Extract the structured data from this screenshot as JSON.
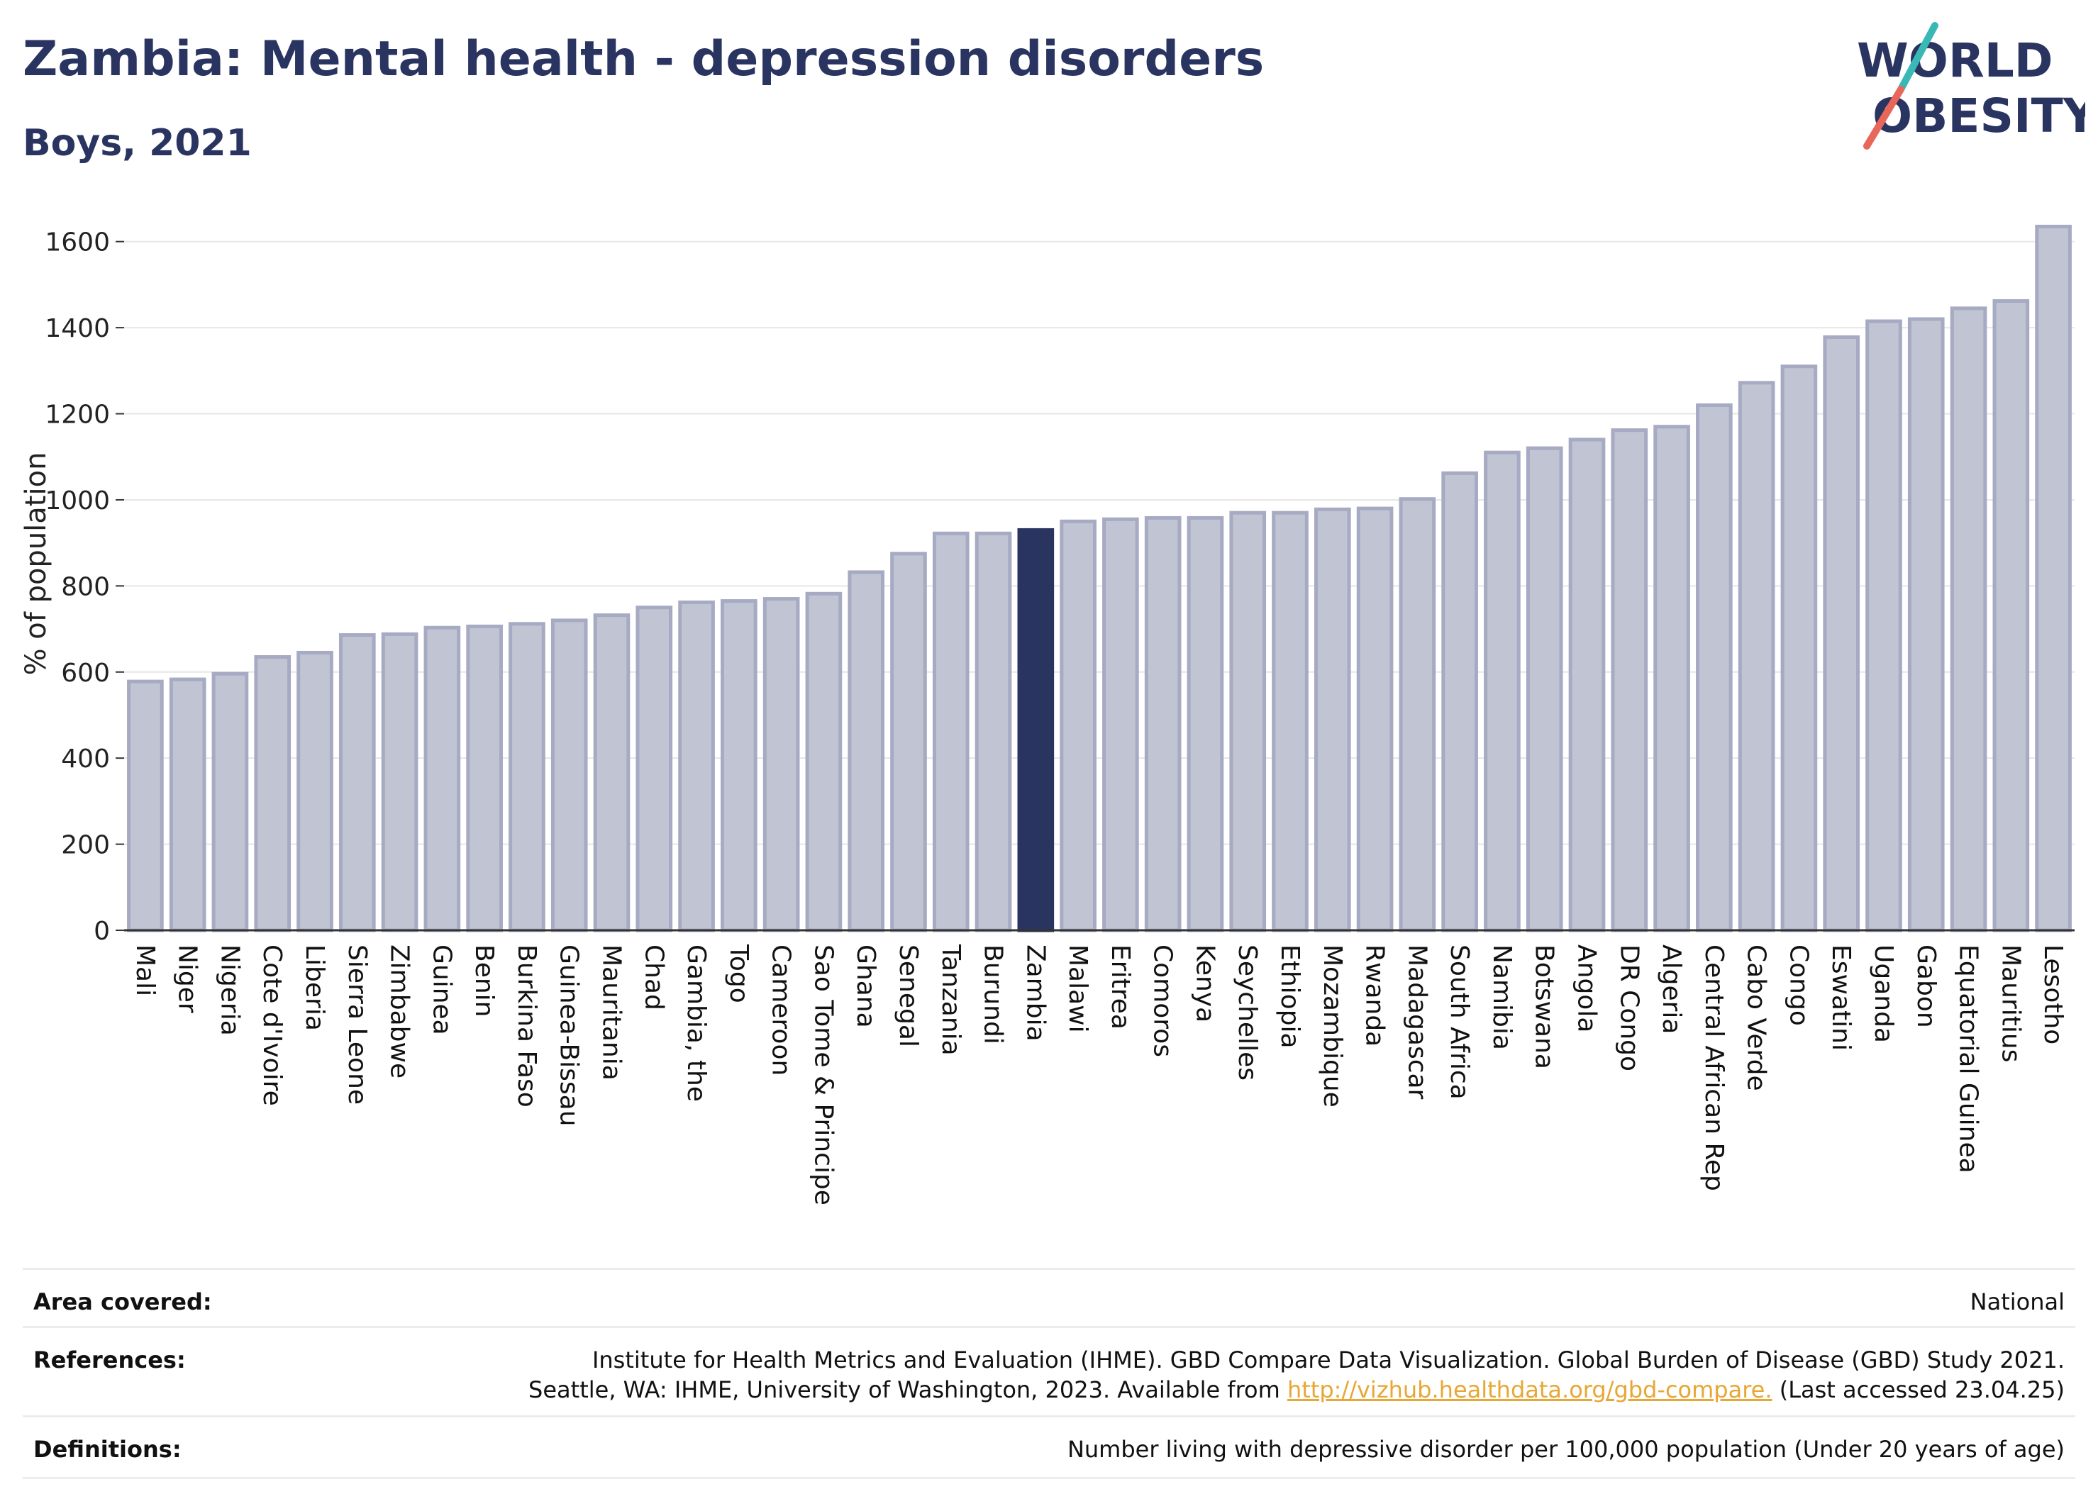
{
  "header": {
    "title": "Zambia: Mental health - depression disorders",
    "subtitle": "Boys, 2021"
  },
  "logo": {
    "line1": "WORLD",
    "line2": "OBESITY",
    "colors": {
      "text": "#2a3461",
      "slash_top": "#3ab8b5",
      "slash_bottom": "#e8665a"
    }
  },
  "chart_data": {
    "type": "bar",
    "title": "",
    "xlabel": "",
    "ylabel": "% of population",
    "ylim": [
      0,
      1700
    ],
    "yticks": [
      0,
      200,
      400,
      600,
      800,
      1000,
      1200,
      1400,
      1600
    ],
    "grid": true,
    "highlight": "Zambia",
    "colors": {
      "bar": "#c1c4d3",
      "bar_edge": "#a6aac2",
      "highlight": "#2a3461",
      "grid": "#e6e6e6",
      "axis": "#333333"
    },
    "categories": [
      "Mali",
      "Niger",
      "Nigeria",
      "Cote d'Ivoire",
      "Liberia",
      "Sierra Leone",
      "Zimbabwe",
      "Guinea",
      "Benin",
      "Burkina Faso",
      "Guinea-Bissau",
      "Mauritania",
      "Chad",
      "Gambia, the",
      "Togo",
      "Cameroon",
      "Sao Tome & Principe",
      "Ghana",
      "Senegal",
      "Tanzania",
      "Burundi",
      "Zambia",
      "Malawi",
      "Eritrea",
      "Comoros",
      "Kenya",
      "Seychelles",
      "Ethiopia",
      "Mozambique",
      "Rwanda",
      "Madagascar",
      "South Africa",
      "Namibia",
      "Botswana",
      "Angola",
      "DR Congo",
      "Algeria",
      "Central African Rep",
      "Cabo Verde",
      "Congo",
      "Eswatini",
      "Uganda",
      "Gabon",
      "Equatorial Guinea",
      "Mauritius",
      "Lesotho"
    ],
    "values": [
      578,
      583,
      596,
      635,
      645,
      686,
      688,
      703,
      706,
      712,
      720,
      732,
      750,
      762,
      765,
      770,
      782,
      832,
      875,
      922,
      922,
      930,
      950,
      955,
      958,
      958,
      970,
      970,
      978,
      980,
      1002,
      1062,
      1110,
      1120,
      1140,
      1162,
      1170,
      1220,
      1272,
      1310,
      1378,
      1415,
      1420,
      1445,
      1462,
      1635
    ]
  },
  "info": {
    "area": {
      "label": "Area covered:",
      "value": "National"
    },
    "references": {
      "label": "References:",
      "line1": "Institute for Health Metrics and Evaluation (IHME). GBD Compare Data Visualization. Global Burden of Disease (GBD) Study 2021.",
      "line2_pre": "Seattle, WA: IHME, University of Washington, 2023. Available from ",
      "link": "http://vizhub.healthdata.org/gbd-compare.",
      "line2_post": " (Last accessed 23.04.25)"
    },
    "definitions": {
      "label": "Definitions:",
      "value": "Number living with depressive disorder per 100,000 population (Under 20 years of age)"
    }
  }
}
